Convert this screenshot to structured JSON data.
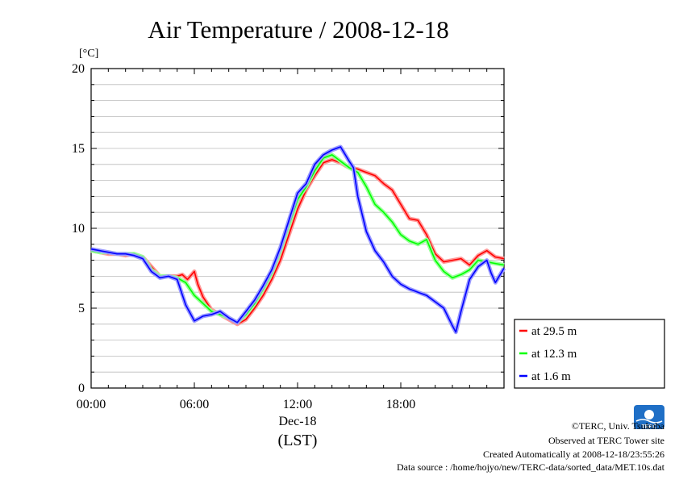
{
  "chart_data": {
    "type": "line",
    "title": "Air Temperature / 2008-12-18",
    "ylabel": "[°C]",
    "xlabel_date": "Dec-18",
    "xlabel_unit": "(LST)",
    "ylim": [
      0,
      20
    ],
    "xlim": [
      0,
      24
    ],
    "yticks": [
      "0",
      "5",
      "10",
      "15",
      "20"
    ],
    "xticks": [
      "00:00",
      "06:00",
      "12:00",
      "18:00"
    ],
    "grid": true,
    "legend_position": "right",
    "series": [
      {
        "name": "at 29.5 m",
        "color": "#ff0000",
        "x": [
          0,
          0.5,
          1,
          1.5,
          2,
          2.5,
          3,
          3.5,
          4,
          4.5,
          5,
          5.3,
          5.6,
          6,
          6.2,
          6.5,
          7,
          7.5,
          8,
          8.5,
          9,
          9.5,
          10,
          10.5,
          11,
          11.5,
          12,
          12.5,
          13,
          13.5,
          14,
          14.5,
          15,
          15.5,
          16,
          16.5,
          17,
          17.5,
          18,
          18.5,
          19,
          19.5,
          20,
          20.5,
          21,
          21.5,
          22,
          22.5,
          23,
          23.5,
          24
        ],
        "y": [
          8.6,
          8.5,
          8.4,
          8.4,
          8.3,
          8.4,
          8.2,
          7.6,
          7.0,
          7.0,
          7.0,
          7.1,
          6.8,
          7.3,
          6.5,
          5.7,
          4.9,
          4.6,
          4.3,
          4.0,
          4.3,
          5.0,
          5.8,
          6.8,
          8.0,
          9.6,
          11.2,
          12.4,
          13.3,
          14.1,
          14.3,
          14.1,
          13.8,
          13.7,
          13.5,
          13.3,
          12.8,
          12.4,
          11.5,
          10.6,
          10.5,
          9.6,
          8.4,
          7.9,
          8.0,
          8.1,
          7.7,
          8.3,
          8.6,
          8.2,
          8.1
        ]
      },
      {
        "name": "at 12.3 m",
        "color": "#00ff00",
        "x": [
          0,
          0.5,
          1,
          1.5,
          2,
          2.5,
          3,
          3.5,
          4,
          4.5,
          5,
          5.5,
          6,
          6.5,
          7,
          7.5,
          8,
          8.5,
          9,
          9.5,
          10,
          10.5,
          11,
          11.5,
          12,
          12.5,
          13,
          13.5,
          14,
          14.5,
          15,
          15.5,
          16,
          16.5,
          17,
          17.5,
          18,
          18.5,
          19,
          19.5,
          20,
          20.5,
          21,
          21.5,
          22,
          22.5,
          23,
          23.5,
          24
        ],
        "y": [
          8.6,
          8.5,
          8.5,
          8.4,
          8.4,
          8.4,
          8.2,
          7.4,
          7.0,
          7.0,
          6.9,
          6.6,
          5.8,
          5.3,
          4.8,
          4.6,
          4.4,
          4.1,
          4.6,
          5.3,
          6.2,
          7.2,
          8.6,
          10.2,
          11.8,
          12.6,
          13.6,
          14.4,
          14.6,
          14.2,
          13.8,
          13.5,
          12.6,
          11.5,
          11.0,
          10.4,
          9.6,
          9.2,
          9.0,
          9.3,
          8.0,
          7.3,
          6.9,
          7.1,
          7.4,
          8.0,
          7.9,
          7.8,
          7.7
        ]
      },
      {
        "name": "at 1.6 m",
        "color": "#0000ff",
        "x": [
          0,
          0.5,
          1,
          1.5,
          2,
          2.5,
          3,
          3.5,
          4,
          4.5,
          5,
          5.5,
          6,
          6.5,
          7,
          7.5,
          8,
          8.5,
          9,
          9.5,
          10,
          10.5,
          11,
          11.5,
          12,
          12.5,
          13,
          13.5,
          14,
          14.5,
          15,
          15.25,
          15.5,
          16,
          16.5,
          17,
          17.5,
          18,
          18.5,
          19,
          19.5,
          20,
          20.5,
          21,
          21.2,
          21.5,
          22,
          22.5,
          23,
          23.25,
          23.5,
          24
        ],
        "y": [
          8.7,
          8.6,
          8.5,
          8.4,
          8.4,
          8.3,
          8.1,
          7.3,
          6.9,
          7.0,
          6.8,
          5.2,
          4.2,
          4.5,
          4.6,
          4.8,
          4.4,
          4.1,
          4.8,
          5.5,
          6.4,
          7.4,
          8.8,
          10.5,
          12.2,
          12.8,
          14.0,
          14.6,
          14.9,
          15.1,
          14.2,
          13.8,
          12.0,
          9.8,
          8.6,
          7.9,
          7.0,
          6.5,
          6.2,
          6.0,
          5.8,
          5.4,
          5.0,
          3.9,
          3.5,
          4.8,
          6.8,
          7.6,
          8.0,
          7.2,
          6.6,
          7.5
        ]
      }
    ]
  },
  "credits": {
    "copyright": "©TERC, Univ. Tsukuba",
    "site": "Observed at TERC Tower site",
    "created": "Created Automatically at 2008-12-18/23:55:26",
    "source": "Data source : /home/hojyo/new/TERC-data/sorted_data/MET.10s.dat"
  },
  "logo": {
    "text": "TERC",
    "color": "#1f6fc6"
  }
}
